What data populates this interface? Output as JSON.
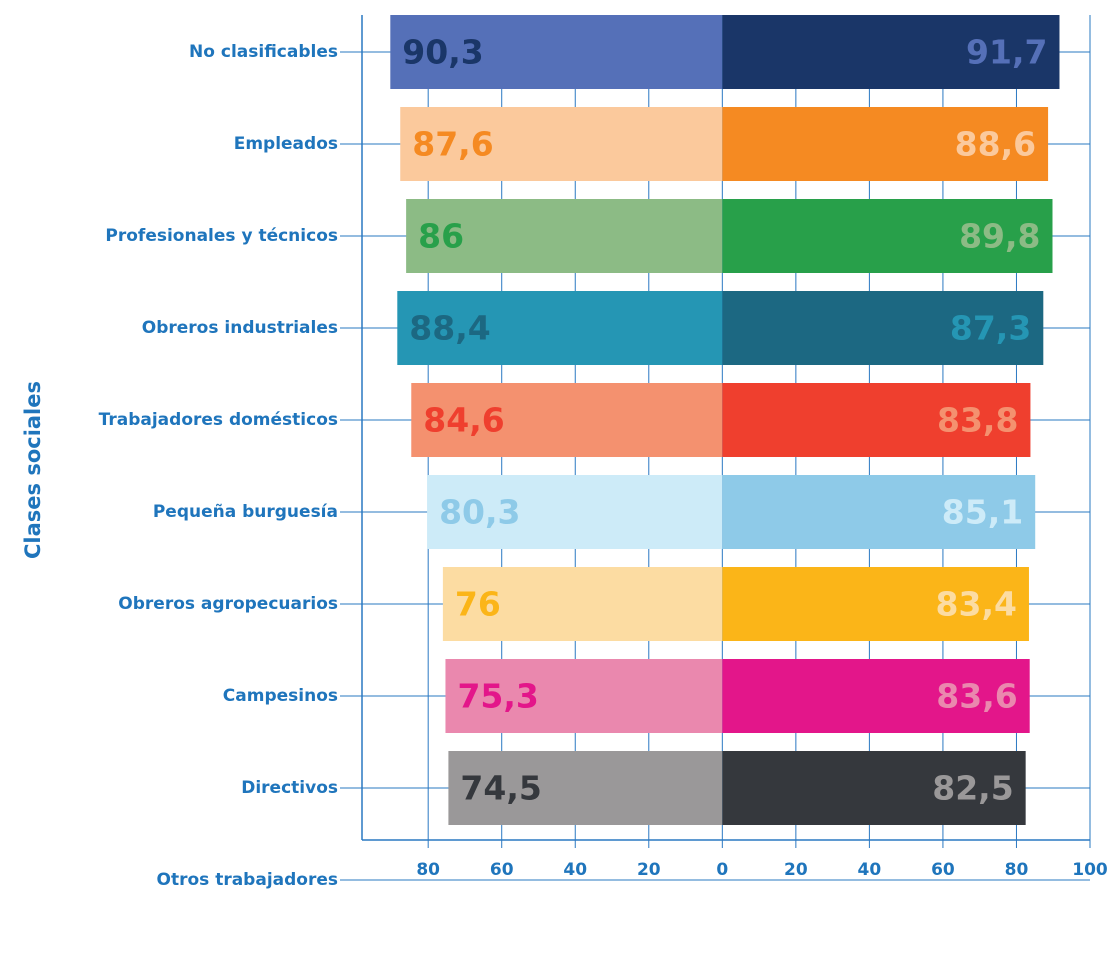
{
  "chart_data": {
    "type": "diverging_bar",
    "ylabel": "Clases sociales",
    "categories": [
      "No clasificables",
      "Empleados",
      "Profesionales y técnicos",
      "Obreros industriales",
      "Trabajadores domésticos",
      "Pequeña burguesía",
      "Obreros agropecuarios",
      "Campesinos",
      "Directivos",
      "Otros trabajadores"
    ],
    "series": [
      {
        "side": "left",
        "values": [
          90.3,
          87.6,
          86,
          88.4,
          84.6,
          80.3,
          76,
          75.3,
          74.5,
          null
        ],
        "value_labels": [
          "90,3",
          "87,6",
          "86",
          "88,4",
          "84,6",
          "80,3",
          "76",
          "75,3",
          "74,5",
          null
        ],
        "colors": [
          "#5570b8",
          "#fbc99c",
          "#8cbb85",
          "#2596b4",
          "#f4916f",
          "#cdebf8",
          "#fcdca2",
          "#ea88ae",
          "#9a9899",
          null
        ]
      },
      {
        "side": "right",
        "values": [
          91.7,
          88.6,
          89.8,
          87.3,
          83.8,
          85.1,
          83.4,
          83.6,
          82.5,
          null
        ],
        "value_labels": [
          "91,7",
          "88,6",
          "89,8",
          "87,3",
          "83,8",
          "85,1",
          "83,4",
          "83,6",
          "82,5",
          null
        ],
        "colors": [
          "#1a3668",
          "#f58a22",
          "#28a04a",
          "#1c6882",
          "#ef3f2e",
          "#8ecae8",
          "#fbb518",
          "#e3168a",
          "#35383d",
          null
        ]
      }
    ],
    "xlim": [
      -98,
      100
    ],
    "xticks": [
      {
        "value": -80,
        "label": "80"
      },
      {
        "value": -60,
        "label": "60"
      },
      {
        "value": -40,
        "label": "40"
      },
      {
        "value": -20,
        "label": "20"
      },
      0,
      20,
      40,
      60,
      80,
      100
    ],
    "grid": true,
    "text_color": "#1f75bc",
    "grid_color": "#2a78c2"
  }
}
